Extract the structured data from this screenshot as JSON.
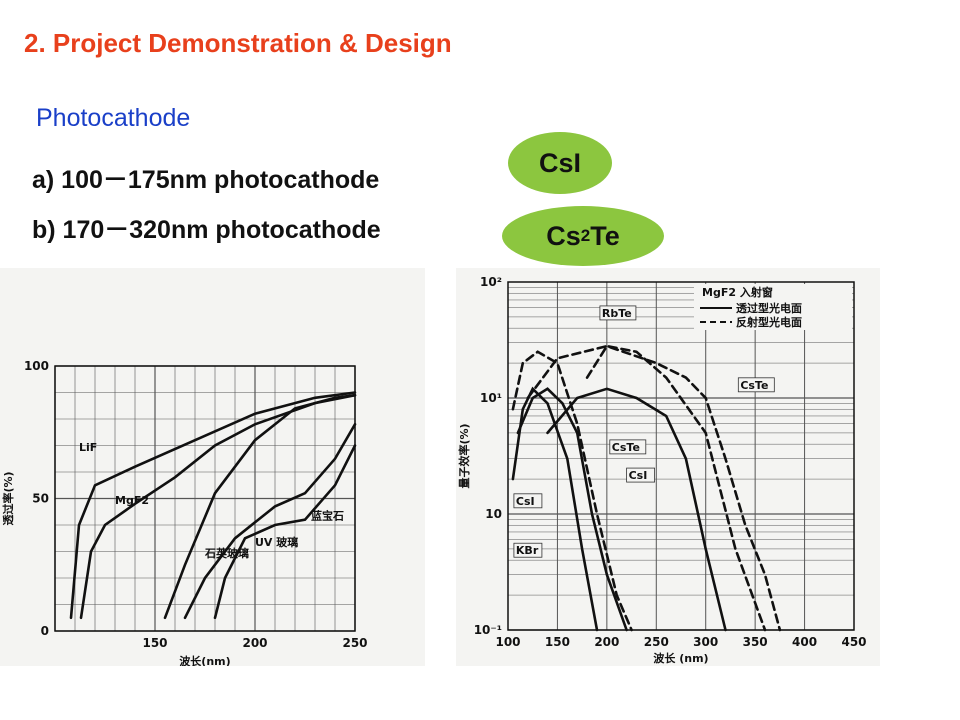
{
  "title": "2. Project Demonstration & Design",
  "subtitle": "Photocathode",
  "items": [
    {
      "text": "a) 100－175nm photocathode"
    },
    {
      "text": "b) 170－320nm photocathode"
    }
  ],
  "badges": {
    "b1": "CsI",
    "b2_main": "Cs",
    "b2_sub": "2",
    "b2_tail": "Te"
  },
  "colors": {
    "title": "#e8401c",
    "subtitle": "#1a3fc8",
    "badge": "#8cc63f"
  },
  "chart_data": [
    {
      "type": "line",
      "title": "",
      "xlabel": "波长(nm)",
      "ylabel": "透过率(%)",
      "xlim": [
        100,
        250
      ],
      "ylim": [
        0,
        100
      ],
      "x_ticks": [
        "150",
        "200",
        "250"
      ],
      "y_ticks": [
        "0",
        "50",
        "100"
      ],
      "series": [
        {
          "name": "石英玻璃",
          "x": [
            155,
            165,
            180,
            200,
            220,
            240,
            250
          ],
          "y": [
            5,
            25,
            52,
            72,
            84,
            88,
            89
          ]
        },
        {
          "name": "LiF",
          "x": [
            108,
            112,
            120,
            140,
            170,
            200,
            230,
            250
          ],
          "y": [
            5,
            40,
            55,
            62,
            72,
            82,
            88,
            90
          ]
        },
        {
          "name": "MgF2",
          "x": [
            113,
            118,
            125,
            140,
            160,
            180,
            200,
            230,
            250
          ],
          "y": [
            5,
            30,
            40,
            48,
            58,
            70,
            78,
            86,
            89
          ]
        },
        {
          "name": "蓝宝石",
          "x": [
            165,
            175,
            190,
            210,
            225,
            240,
            250
          ],
          "y": [
            5,
            20,
            35,
            47,
            52,
            65,
            78
          ]
        },
        {
          "name": "UV 玻璃",
          "x": [
            180,
            185,
            195,
            210,
            225,
            240,
            250
          ],
          "y": [
            5,
            20,
            35,
            40,
            42,
            55,
            70
          ]
        }
      ]
    },
    {
      "type": "line",
      "title": "",
      "xlabel": "波长 (nm)",
      "ylabel": "量子效率(%)",
      "xlim": [
        100,
        450
      ],
      "ylim_log": [
        0.1,
        100
      ],
      "legend_title": "MgF2 入射窗",
      "legend": [
        "透过型光电面",
        "反射型光电面"
      ],
      "x_ticks": [
        "100",
        "150",
        "200",
        "250",
        "300",
        "350",
        "400",
        "450"
      ],
      "y_ticks": [
        "10²",
        "10¹",
        "10",
        "10⁻¹"
      ],
      "series": [
        {
          "name": "RbTe",
          "style": "dashed",
          "x": [
            180,
            200,
            230,
            260,
            300,
            330,
            360
          ],
          "y": [
            15,
            28,
            25,
            15,
            5,
            0.5,
            0.1
          ]
        },
        {
          "name": "CsTe",
          "style": "dashed",
          "x": [
            120,
            150,
            200,
            250,
            280,
            300,
            320,
            340,
            360,
            375
          ],
          "y": [
            10,
            22,
            28,
            20,
            15,
            10,
            3,
            0.8,
            0.3,
            0.1
          ]
        },
        {
          "name": "CsTe",
          "style": "solid",
          "x": [
            140,
            170,
            200,
            230,
            260,
            280,
            300,
            320
          ],
          "y": [
            5,
            10,
            12,
            10,
            7,
            3,
            0.5,
            0.1
          ]
        },
        {
          "name": "CsI",
          "style": "dashed",
          "x": [
            105,
            115,
            130,
            150,
            170,
            190,
            210,
            225
          ],
          "y": [
            8,
            20,
            25,
            20,
            6,
            1,
            0.2,
            0.1
          ]
        },
        {
          "name": "CsI",
          "style": "solid",
          "x": [
            110,
            125,
            140,
            155,
            170,
            185,
            200,
            220
          ],
          "y": [
            5,
            10,
            12,
            9,
            5,
            1,
            0.3,
            0.1
          ]
        },
        {
          "name": "KBr",
          "style": "solid",
          "x": [
            105,
            115,
            125,
            140,
            160,
            175,
            190
          ],
          "y": [
            2,
            8,
            12,
            9,
            3,
            0.5,
            0.1
          ]
        }
      ]
    }
  ]
}
